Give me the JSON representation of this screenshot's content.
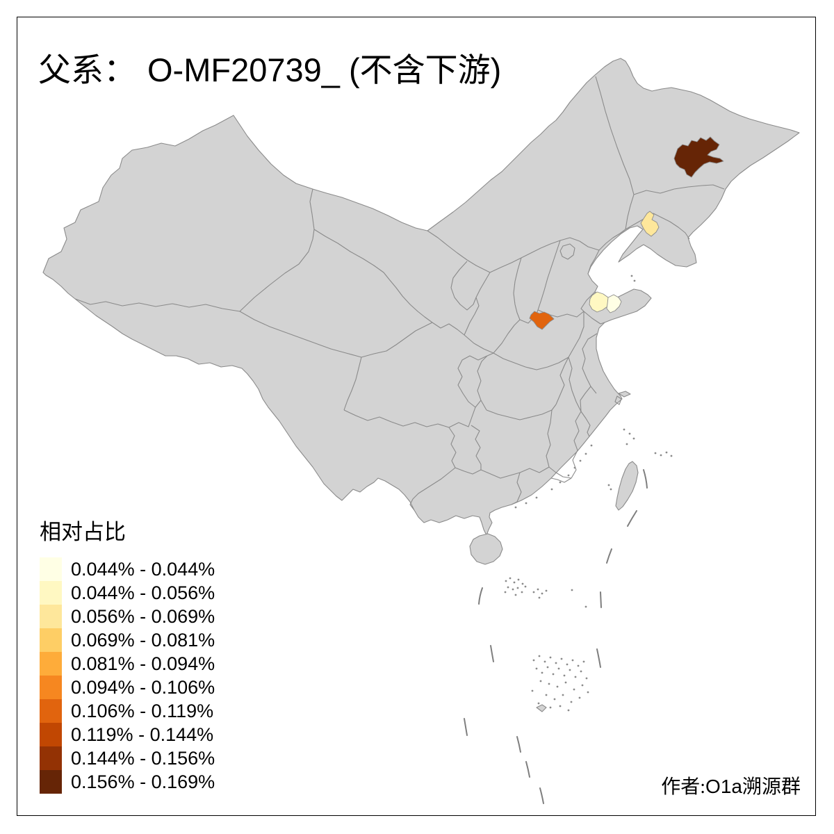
{
  "title": {
    "prefix": "父系：",
    "main": "O-MF20739_ (不含下游)"
  },
  "attribution": {
    "prefix": "作者:",
    "latin": "O1a",
    "suffix": "溯源群"
  },
  "legend": {
    "title": "相对占比",
    "bins": [
      {
        "label": "0.044% - 0.044%",
        "color": "#FFFFE5"
      },
      {
        "label": "0.044% - 0.056%",
        "color": "#FFF8C2"
      },
      {
        "label": "0.056% - 0.069%",
        "color": "#FEE79B"
      },
      {
        "label": "0.069% - 0.081%",
        "color": "#FECE65"
      },
      {
        "label": "0.081% - 0.094%",
        "color": "#FEAC3A"
      },
      {
        "label": "0.094% - 0.106%",
        "color": "#F68720"
      },
      {
        "label": "0.106% - 0.119%",
        "color": "#E1640E"
      },
      {
        "label": "0.119% - 0.144%",
        "color": "#C14702"
      },
      {
        "label": "0.144% - 0.156%",
        "color": "#933204"
      },
      {
        "label": "0.156% - 0.169%",
        "color": "#662506"
      }
    ]
  },
  "map": {
    "land_fill": "#D3D3D3",
    "border_color": "#8A8A8A",
    "sea": "#FFFFFF",
    "frame_color": "#000000"
  },
  "regions": [
    {
      "location": "Heilongjiang central prefecture",
      "bin_label": "0.156% - 0.169%",
      "color": "#662506"
    },
    {
      "location": "Liaoning north prefecture",
      "bin_label": "0.056% - 0.069%",
      "color": "#FEE79B"
    },
    {
      "location": "Shandong central prefecture",
      "bin_label": "0.044% - 0.056%",
      "color": "#FFF8C2"
    },
    {
      "location": "Shandong east prefecture",
      "bin_label": "0.044% - 0.044%",
      "color": "#FFFFE5"
    },
    {
      "location": "Henan northwest prefecture",
      "bin_label": "0.106% - 0.119%",
      "color": "#E1640E"
    }
  ],
  "chart_data": {
    "type": "choropleth-map",
    "title": "父系： O-MF20739_ (不含下游)",
    "legend_title": "相对占比",
    "attribution": "作者:O1a溯源群",
    "base_region_color": "#D3D3D3",
    "bins": [
      {
        "range": "0.044% - 0.044%",
        "color": "#FFFFE5"
      },
      {
        "range": "0.044% - 0.056%",
        "color": "#FFF8C2"
      },
      {
        "range": "0.056% - 0.069%",
        "color": "#FEE79B"
      },
      {
        "range": "0.069% - 0.081%",
        "color": "#FECE65"
      },
      {
        "range": "0.081% - 0.094%",
        "color": "#FEAC3A"
      },
      {
        "range": "0.094% - 0.106%",
        "color": "#F68720"
      },
      {
        "range": "0.106% - 0.119%",
        "color": "#E1640E"
      },
      {
        "range": "0.119% - 0.144%",
        "color": "#C14702"
      },
      {
        "range": "0.144% - 0.156%",
        "color": "#933204"
      },
      {
        "range": "0.156% - 0.169%",
        "color": "#662506"
      }
    ],
    "highlighted_regions": [
      {
        "location": "Heilongjiang central (northeast China)",
        "value_range": "0.156% - 0.169%",
        "color": "#662506"
      },
      {
        "location": "Liaoning north",
        "value_range": "0.056% - 0.069%",
        "color": "#FEE79B"
      },
      {
        "location": "Shandong central",
        "value_range": "0.044% - 0.056%",
        "color": "#FFF8C2"
      },
      {
        "location": "Shandong east (peninsula)",
        "value_range": "0.044% - 0.044%",
        "color": "#FFFFE5"
      },
      {
        "location": "Henan northwest (Yellow River area)",
        "value_range": "0.106% - 0.119%",
        "color": "#E1640E"
      }
    ]
  }
}
